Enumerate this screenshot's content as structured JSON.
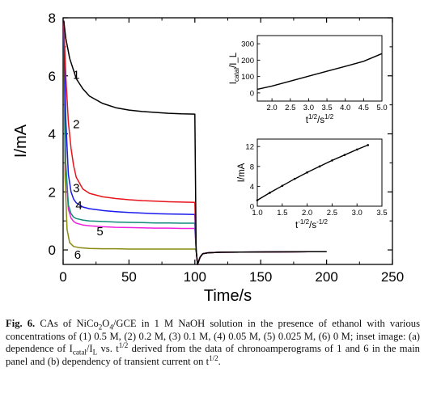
{
  "figure": {
    "chart_data": [
      {
        "id": "main",
        "type": "line",
        "xlabel": "Time/s",
        "ylabel": "I/mA",
        "xlim": [
          0,
          250
        ],
        "ylim": [
          -0.5,
          8
        ],
        "xticks": [
          "0",
          "50",
          "100",
          "150",
          "200",
          "250"
        ],
        "yticks": [
          "0",
          "2",
          "4",
          "6",
          "8"
        ],
        "grid": false,
        "colors": [
          "#000000",
          "#e8141c",
          "#1a1aee",
          "#138a7a",
          "#ee22dd",
          "#8a8a10"
        ],
        "series": [
          {
            "name": "1",
            "x": [
              0.5,
              2,
              5,
              10,
              15,
              20,
              30,
              40,
              50,
              60,
              70,
              80,
              90,
              100,
              101,
              102,
              104,
              106,
              110,
              120,
              150,
              200
            ],
            "y": [
              7.9,
              7.3,
              6.6,
              5.9,
              5.55,
              5.3,
              5.05,
              4.9,
              4.82,
              4.77,
              4.74,
              4.71,
              4.69,
              4.68,
              0.0,
              -0.5,
              -0.25,
              -0.13,
              -0.1,
              -0.08,
              -0.07,
              -0.06
            ]
          },
          {
            "name": "2",
            "x": [
              0.5,
              2,
              4,
              6,
              8,
              10,
              15,
              20,
              30,
              40,
              50,
              60,
              70,
              80,
              90,
              100,
              101,
              102,
              104,
              106,
              110,
              120,
              150,
              200
            ],
            "y": [
              7.9,
              6.0,
              4.4,
              3.5,
              2.9,
              2.5,
              2.1,
              1.95,
              1.83,
              1.77,
              1.73,
              1.7,
              1.68,
              1.66,
              1.65,
              1.64,
              0.0,
              -0.5,
              -0.25,
              -0.13,
              -0.1,
              -0.08,
              -0.07,
              -0.06
            ]
          },
          {
            "name": "3",
            "x": [
              0.5,
              2,
              4,
              6,
              8,
              10,
              15,
              20,
              30,
              40,
              50,
              60,
              70,
              80,
              90,
              100,
              101,
              102,
              104,
              106,
              110,
              120,
              150,
              200
            ],
            "y": [
              7.9,
              4.5,
              2.6,
              2.0,
              1.75,
              1.62,
              1.48,
              1.42,
              1.36,
              1.32,
              1.29,
              1.27,
              1.25,
              1.24,
              1.23,
              1.22,
              0.0,
              -0.5,
              -0.25,
              -0.13,
              -0.1,
              -0.08,
              -0.07,
              -0.06
            ]
          },
          {
            "name": "4",
            "x": [
              0.5,
              2,
              4,
              6,
              8,
              10,
              15,
              20,
              30,
              40,
              50,
              60,
              70,
              80,
              90,
              100,
              101,
              102,
              104,
              106,
              110,
              120,
              150,
              200
            ],
            "y": [
              7.9,
              3.0,
              1.55,
              1.25,
              1.13,
              1.08,
              1.03,
              1.0,
              0.98,
              0.96,
              0.95,
              0.94,
              0.93,
              0.93,
              0.92,
              0.92,
              0.0,
              -0.5,
              -0.25,
              -0.13,
              -0.1,
              -0.08,
              -0.07,
              -0.06
            ]
          },
          {
            "name": "5",
            "x": [
              0.5,
              2,
              4,
              6,
              8,
              10,
              15,
              20,
              30,
              40,
              50,
              60,
              70,
              80,
              90,
              100,
              101,
              102,
              104,
              106,
              110,
              120,
              150,
              200
            ],
            "y": [
              7.9,
              2.8,
              1.4,
              1.1,
              0.98,
              0.92,
              0.86,
              0.83,
              0.8,
              0.78,
              0.77,
              0.76,
              0.75,
              0.75,
              0.74,
              0.74,
              0.0,
              -0.5,
              -0.25,
              -0.13,
              -0.1,
              -0.08,
              -0.07,
              -0.06
            ]
          },
          {
            "name": "6",
            "x": [
              0.5,
              1.5,
              3,
              5,
              8,
              12,
              20,
              30,
              40,
              50,
              60,
              70,
              80,
              90,
              100,
              101,
              102,
              104,
              106,
              110,
              120,
              150,
              200
            ],
            "y": [
              7.9,
              2.5,
              0.7,
              0.25,
              0.12,
              0.08,
              0.05,
              0.04,
              0.04,
              0.03,
              0.03,
              0.03,
              0.03,
              0.03,
              0.03,
              0.0,
              -0.5,
              -0.25,
              -0.13,
              -0.1,
              -0.08,
              -0.07,
              -0.06
            ]
          }
        ],
        "curve_labels": [
          {
            "text": "1",
            "x": 10,
            "y": 5.9
          },
          {
            "text": "2",
            "x": 10,
            "y": 4.2
          },
          {
            "text": "3",
            "x": 10,
            "y": 2.0
          },
          {
            "text": "4",
            "x": 12,
            "y": 1.4
          },
          {
            "text": "5",
            "x": 28,
            "y": 0.5
          },
          {
            "text": "6",
            "x": 11,
            "y": -0.3
          }
        ]
      },
      {
        "id": "inset_a",
        "type": "line",
        "xlabel": "t^{1/2}/s^{1/2}",
        "ylabel": "I_{catal}/I_L",
        "xlim": [
          1.6,
          5.0
        ],
        "ylim": [
          -50,
          350
        ],
        "xticks": [
          "2.0",
          "2.5",
          "3.0",
          "3.5",
          "4.0",
          "4.5",
          "5.0"
        ],
        "yticks": [
          "0",
          "100",
          "200",
          "300"
        ],
        "color": "#000000",
        "x": [
          1.6,
          2.0,
          2.5,
          3.0,
          3.5,
          4.0,
          4.5,
          5.0
        ],
        "y": [
          22,
          42,
          72,
          102,
          132,
          162,
          193,
          240
        ]
      },
      {
        "id": "inset_b",
        "type": "line",
        "xlabel": "t^{-1/2}/s^{-1/2}",
        "ylabel": "I/mA",
        "xlim": [
          1.0,
          3.5
        ],
        "ylim": [
          0,
          13.5
        ],
        "xticks": [
          "1.0",
          "1.5",
          "2.0",
          "2.5",
          "3.0",
          "3.5"
        ],
        "yticks": [
          "0",
          "4",
          "8",
          "12"
        ],
        "color": "#000000",
        "x": [
          1.0,
          1.25,
          1.5,
          1.75,
          2.0,
          2.25,
          2.5,
          2.75,
          3.0,
          3.22
        ],
        "y": [
          1.2,
          2.7,
          4.1,
          5.5,
          6.8,
          8.0,
          9.2,
          10.3,
          11.4,
          12.3
        ]
      }
    ]
  },
  "caption": {
    "fig_label": "Fig. 6.",
    "text": "CAs of NiCo2O4/GCE in 1 M NaOH solution in the presence of ethanol with various concentrations of (1) 0.5 M, (2) 0.2 M, (3) 0.1 M, (4) 0.05 M, (5) 0.025 M, (6) 0 M; inset image: (a) dependence of Icatal/IL vs. t1/2 derived from the data of chronoamperograms of 1 and 6 in the main panel and (b) dependency of transient current on t1/2."
  }
}
